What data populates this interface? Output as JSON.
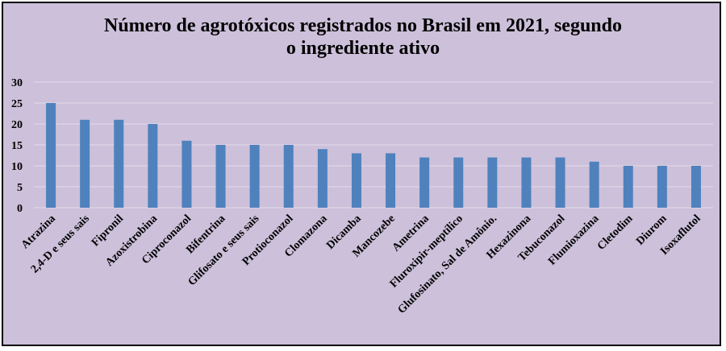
{
  "chart_data": {
    "type": "bar",
    "title_line1": "Número de agrotóxicos registrados no Brasil em 2021, segundo",
    "title_line2": "o ingrediente ativo",
    "xlabel": "",
    "ylabel": "",
    "ylim": [
      0,
      30
    ],
    "yticks": [
      0,
      5,
      10,
      15,
      20,
      25,
      30
    ],
    "grid": true,
    "legend": "none",
    "categories": [
      "Atrazina",
      "2,4-D e seus sais",
      "Fipronil",
      "Azoxistrobina",
      "Ciproconazol",
      "Bifentrina",
      "Glifosato e seus sais",
      "Protioconazol",
      "Clomazona",
      "Dicamba",
      "Mancozebe",
      "Ametrina",
      "Fluroxipir-meptílico",
      "Glufosinato, Sal de Amônio.",
      "Hexazinona",
      "Tebuconazol",
      "Flumioxazina",
      "Cletodim",
      "Diurom",
      "Isoxaflutol"
    ],
    "values": [
      25,
      21,
      21,
      20,
      16,
      15,
      15,
      15,
      14,
      13,
      13,
      12,
      12,
      12,
      12,
      12,
      11,
      10,
      10,
      10
    ],
    "colors": {
      "background": "#ccc0da",
      "bar": "#4f81bd",
      "grid": "#e3dcea",
      "border": "#000000"
    }
  }
}
